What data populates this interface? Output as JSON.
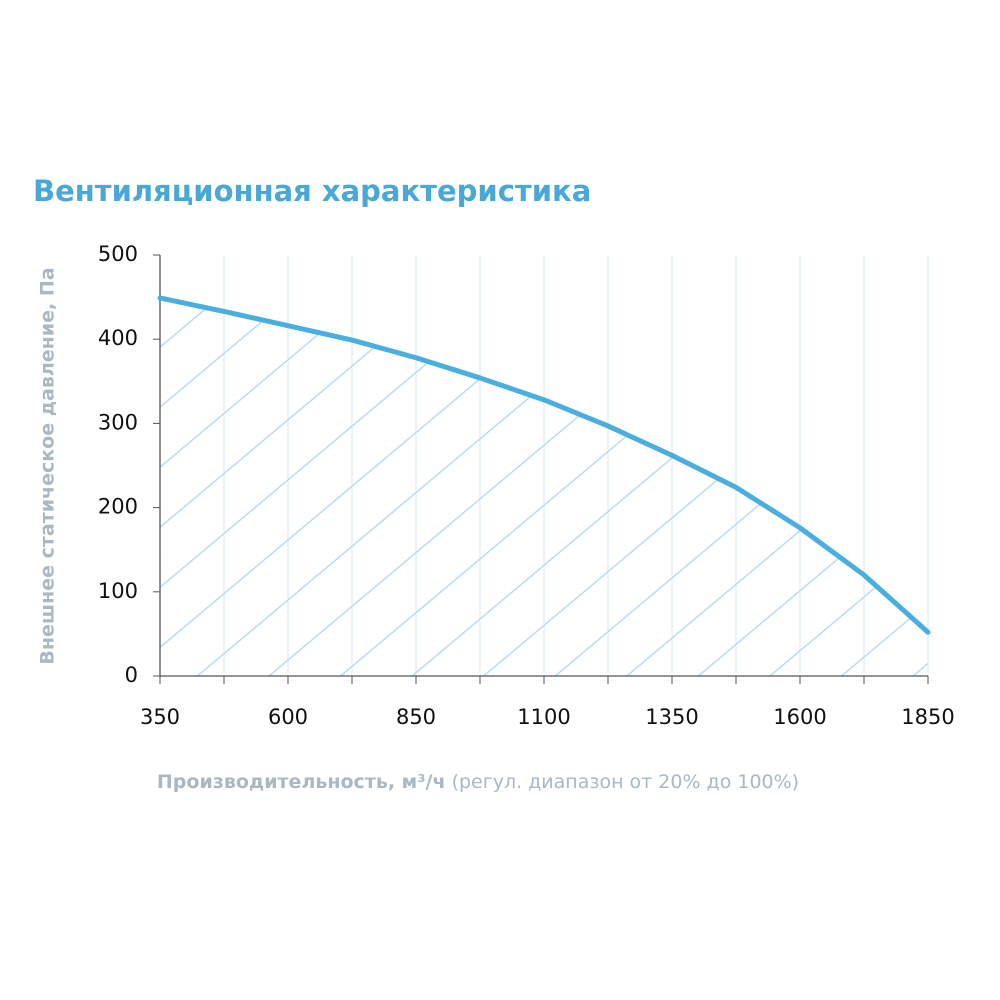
{
  "chart_data": {
    "type": "line",
    "title": "Вентиляционная характеристика",
    "ylabel": "Внешнее статическое давление, Па",
    "xlabel": "Производительность, м³/ч",
    "xlabel_note": "(регул. диапазон от 20% до 100%)",
    "x": [
      350,
      475,
      600,
      725,
      850,
      975,
      1100,
      1225,
      1350,
      1475,
      1600,
      1725,
      1850
    ],
    "series": [
      {
        "color": "#4aaede",
        "values": [
          449,
          433,
          416,
          399,
          378,
          354,
          328,
          297,
          262,
          224,
          176,
          120,
          52
        ]
      }
    ],
    "xlim": [
      350,
      1850
    ],
    "ylim": [
      0,
      500
    ],
    "xticks": [
      350,
      600,
      850,
      1100,
      1350,
      1600,
      1850
    ],
    "yticks": [
      0,
      100,
      200,
      300,
      400,
      500
    ],
    "grid": true,
    "hatch": true
  }
}
